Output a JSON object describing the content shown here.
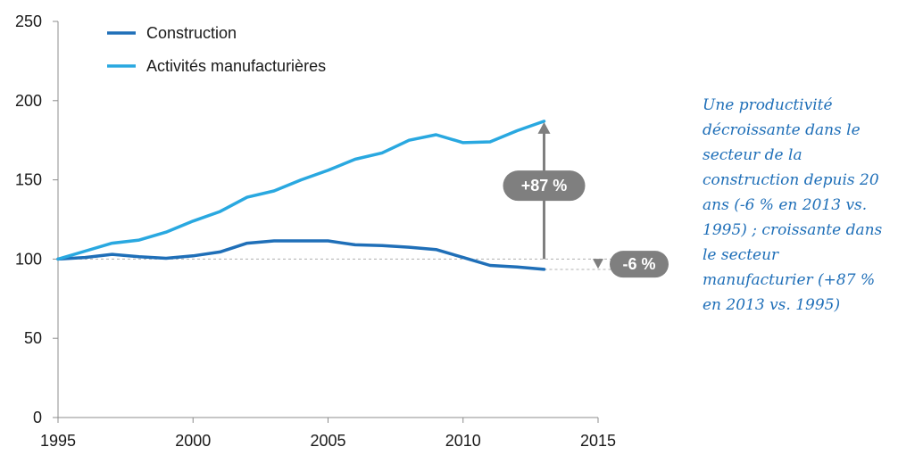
{
  "chart_data": {
    "type": "line",
    "x": [
      1995,
      1996,
      1997,
      1998,
      1999,
      2000,
      2001,
      2002,
      2003,
      2004,
      2005,
      2006,
      2007,
      2008,
      2009,
      2010,
      2011,
      2012,
      2013
    ],
    "series": [
      {
        "name": "Construction",
        "color": "#1f6fb8",
        "values": [
          100,
          101,
          103,
          101.5,
          100.5,
          102,
          104.5,
          110,
          111.5,
          111.5,
          111.5,
          109,
          108.5,
          107.5,
          106,
          101,
          96,
          95,
          93.5
        ]
      },
      {
        "name": "Activités manufacturières",
        "color": "#29a8e0",
        "values": [
          100,
          105,
          110,
          112,
          117,
          124,
          130,
          139,
          143,
          150,
          156,
          163,
          167,
          175,
          178.5,
          173.5,
          174,
          181,
          187
        ]
      }
    ],
    "xlim": [
      1995,
      2015
    ],
    "ylim": [
      0,
      250
    ],
    "x_ticks": [
      "1995",
      "2000",
      "2005",
      "2010",
      "2015"
    ],
    "y_ticks": [
      "0",
      "50",
      "100",
      "150",
      "200",
      "250"
    ],
    "legend_position": "top-left",
    "grid": false,
    "annotations": {
      "manufacturing_change": "+87 %",
      "construction_change": "-6 %"
    }
  },
  "annotation_text": "Une productivité décroissante dans le secteur de la construction depuis 20 ans (-6 % en 2013 vs. 1995) ; croissante dans le secteur manufacturier (+87 % en 2013 vs. 1995)",
  "colors": {
    "badge": "#7f7f7f",
    "arrow": "#7f7f7f",
    "annotation_text": "#1f6fb8"
  }
}
